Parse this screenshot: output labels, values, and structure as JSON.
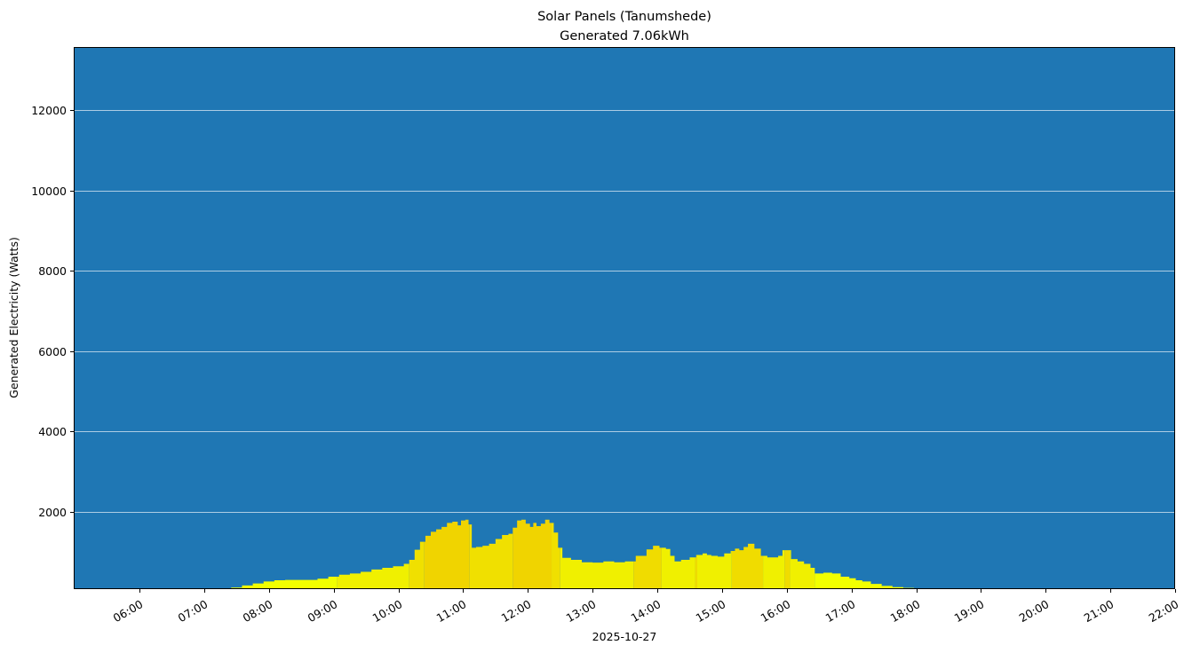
{
  "chart_data": {
    "type": "area",
    "title": "Solar Panels (Tanumshede)",
    "subtitle": "Generated 7.06kWh",
    "xlabel": "2025-10-27",
    "ylabel": "Generated Electricity (Watts)",
    "date": "2025-10-27",
    "total_generated_kwh": 7.06,
    "xlim": [
      "04:59",
      "22:00"
    ],
    "ylim": [
      70,
      13580
    ],
    "grid": {
      "y": true,
      "x": false,
      "color": "#ffffff"
    },
    "legend": null,
    "background_color": "#1f77b4",
    "fill_color_low": "#f2ff00",
    "fill_color_high": "#f0cc00",
    "x_ticks": [
      "06:00",
      "07:00",
      "08:00",
      "09:00",
      "10:00",
      "11:00",
      "12:00",
      "13:00",
      "14:00",
      "15:00",
      "16:00",
      "17:00",
      "18:00",
      "19:00",
      "20:00",
      "21:00",
      "22:00"
    ],
    "y_ticks": [
      2000,
      4000,
      6000,
      8000,
      10000,
      12000
    ],
    "series": [
      {
        "name": "Generated Electricity (W)",
        "points": [
          [
            "07:15",
            80
          ],
          [
            "07:25",
            110
          ],
          [
            "07:35",
            160
          ],
          [
            "07:45",
            210
          ],
          [
            "07:55",
            260
          ],
          [
            "08:05",
            290
          ],
          [
            "08:15",
            300
          ],
          [
            "08:25",
            300
          ],
          [
            "08:35",
            300
          ],
          [
            "08:45",
            330
          ],
          [
            "08:55",
            380
          ],
          [
            "09:05",
            430
          ],
          [
            "09:15",
            460
          ],
          [
            "09:25",
            500
          ],
          [
            "09:35",
            560
          ],
          [
            "09:45",
            600
          ],
          [
            "09:55",
            640
          ],
          [
            "10:05",
            700
          ],
          [
            "10:10",
            800
          ],
          [
            "10:15",
            1050
          ],
          [
            "10:20",
            1250
          ],
          [
            "10:25",
            1400
          ],
          [
            "10:30",
            1500
          ],
          [
            "10:35",
            1560
          ],
          [
            "10:40",
            1620
          ],
          [
            "10:45",
            1720
          ],
          [
            "10:50",
            1750
          ],
          [
            "10:55",
            1660
          ],
          [
            "10:58",
            1780
          ],
          [
            "11:02",
            1800
          ],
          [
            "11:05",
            1680
          ],
          [
            "11:08",
            1100
          ],
          [
            "11:12",
            1120
          ],
          [
            "11:18",
            1150
          ],
          [
            "11:24",
            1200
          ],
          [
            "11:30",
            1320
          ],
          [
            "11:36",
            1420
          ],
          [
            "11:42",
            1450
          ],
          [
            "11:46",
            1600
          ],
          [
            "11:50",
            1780
          ],
          [
            "11:54",
            1800
          ],
          [
            "11:58",
            1700
          ],
          [
            "12:02",
            1620
          ],
          [
            "12:05",
            1720
          ],
          [
            "12:08",
            1640
          ],
          [
            "12:12",
            1700
          ],
          [
            "12:16",
            1800
          ],
          [
            "12:20",
            1720
          ],
          [
            "12:24",
            1480
          ],
          [
            "12:28",
            1100
          ],
          [
            "12:32",
            850
          ],
          [
            "12:40",
            800
          ],
          [
            "12:50",
            740
          ],
          [
            "13:00",
            730
          ],
          [
            "13:10",
            760
          ],
          [
            "13:20",
            740
          ],
          [
            "13:30",
            760
          ],
          [
            "13:40",
            900
          ],
          [
            "13:50",
            1060
          ],
          [
            "13:56",
            1150
          ],
          [
            "14:02",
            1100
          ],
          [
            "14:08",
            1070
          ],
          [
            "14:12",
            900
          ],
          [
            "14:16",
            760
          ],
          [
            "14:22",
            800
          ],
          [
            "14:30",
            860
          ],
          [
            "14:36",
            920
          ],
          [
            "14:42",
            960
          ],
          [
            "14:46",
            920
          ],
          [
            "14:50",
            900
          ],
          [
            "14:56",
            880
          ],
          [
            "15:02",
            960
          ],
          [
            "15:08",
            1020
          ],
          [
            "15:12",
            1080
          ],
          [
            "15:16",
            1040
          ],
          [
            "15:20",
            1120
          ],
          [
            "15:24",
            1200
          ],
          [
            "15:30",
            1080
          ],
          [
            "15:36",
            900
          ],
          [
            "15:42",
            860
          ],
          [
            "15:48",
            860
          ],
          [
            "15:52",
            900
          ],
          [
            "15:56",
            1040
          ],
          [
            "16:00",
            1040
          ],
          [
            "16:04",
            820
          ],
          [
            "16:10",
            760
          ],
          [
            "16:16",
            700
          ],
          [
            "16:22",
            600
          ],
          [
            "16:26",
            460
          ],
          [
            "16:34",
            480
          ],
          [
            "16:42",
            460
          ],
          [
            "16:50",
            380
          ],
          [
            "16:58",
            340
          ],
          [
            "17:04",
            290
          ],
          [
            "17:10",
            260
          ],
          [
            "17:18",
            200
          ],
          [
            "17:28",
            150
          ],
          [
            "17:38",
            120
          ],
          [
            "17:48",
            100
          ],
          [
            "17:58",
            85
          ]
        ]
      }
    ],
    "color_bands": [
      {
        "from": "07:15",
        "to": "09:03",
        "color": "#f2ff00"
      },
      {
        "from": "09:03",
        "to": "10:10",
        "color": "#f0f000"
      },
      {
        "from": "10:10",
        "to": "10:24",
        "color": "#f0e000"
      },
      {
        "from": "10:24",
        "to": "11:06",
        "color": "#f0d400"
      },
      {
        "from": "11:06",
        "to": "11:46",
        "color": "#f0e000"
      },
      {
        "from": "11:46",
        "to": "12:22",
        "color": "#f0d400"
      },
      {
        "from": "12:22",
        "to": "12:30",
        "color": "#f0e000"
      },
      {
        "from": "12:30",
        "to": "13:38",
        "color": "#f0f000"
      },
      {
        "from": "13:38",
        "to": "14:04",
        "color": "#f0dc00"
      },
      {
        "from": "14:04",
        "to": "14:35",
        "color": "#f0f000"
      },
      {
        "from": "14:35",
        "to": "14:37",
        "color": "#f0dc00"
      },
      {
        "from": "14:37",
        "to": "15:09",
        "color": "#f0f000"
      },
      {
        "from": "15:09",
        "to": "15:38",
        "color": "#f0dc00"
      },
      {
        "from": "15:38",
        "to": "15:58",
        "color": "#f0f000"
      },
      {
        "from": "15:58",
        "to": "16:03",
        "color": "#f0dc00"
      },
      {
        "from": "16:03",
        "to": "16:26",
        "color": "#f0f000"
      },
      {
        "from": "16:26",
        "to": "18:00",
        "color": "#f2ff00"
      }
    ]
  }
}
